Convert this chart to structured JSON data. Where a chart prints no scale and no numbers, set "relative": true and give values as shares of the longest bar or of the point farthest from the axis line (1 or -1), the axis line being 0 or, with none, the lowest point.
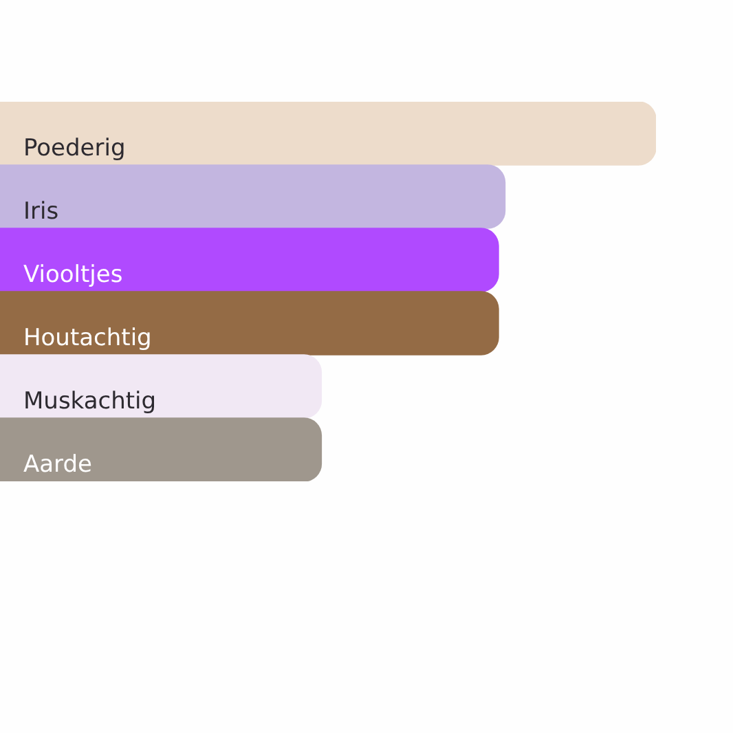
{
  "chart_data": {
    "type": "bar",
    "orientation": "horizontal",
    "relative": true,
    "categories": [
      "Poederig",
      "Iris",
      "Viooltjes",
      "Houtachtig",
      "Muskachtig",
      "Aarde"
    ],
    "values": [
      1,
      0.77,
      0.76,
      0.76,
      0.49,
      0.49
    ],
    "colors": [
      "#eddccb",
      "#c3b6e0",
      "#b04aff",
      "#946b45",
      "#f1e8f4",
      "#9f978d"
    ]
  }
}
